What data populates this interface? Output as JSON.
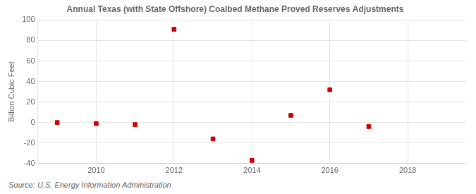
{
  "chart_data": {
    "type": "scatter",
    "title": "Annual Texas (with State Offshore) Coalbed Methane Proved Reserves Adjustments",
    "y_label": "Billion Cubic Feet",
    "annotation": "Source: U.S. Energy Information Administration",
    "x": [
      2009,
      2010,
      2011,
      2012,
      2013,
      2014,
      2015,
      2016,
      2017
    ],
    "values": [
      0,
      -1,
      -2,
      91,
      -16,
      -37,
      7,
      32,
      -4
    ],
    "color": "#cc0000",
    "marker": "square",
    "xlim": [
      2008.5,
      2019.5
    ],
    "xticks": [
      2010,
      2012,
      2014,
      2016,
      2018
    ],
    "ylim": [
      -40,
      100
    ],
    "yticks": [
      -40,
      -20,
      0,
      20,
      40,
      60,
      80,
      100
    ],
    "grid": true
  }
}
